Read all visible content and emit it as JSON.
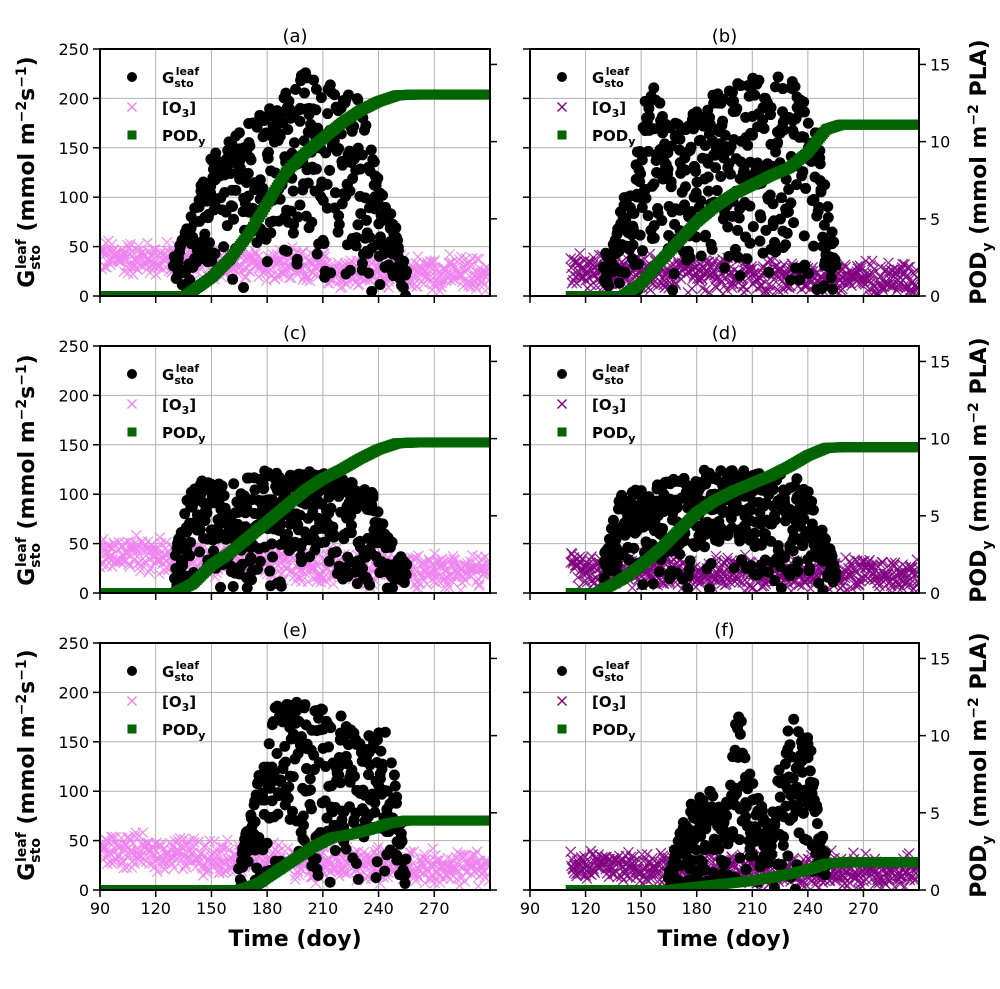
{
  "figure": {
    "xlabel": "Time (doy)",
    "ylabel_left_main": "G",
    "ylabel_left_sub": "sto",
    "ylabel_left_sup": "leaf",
    "ylabel_left_units": " (mmol m",
    "ylabel_left_exp1": "−2",
    "ylabel_left_mid": "s",
    "ylabel_left_exp2": "−1",
    "ylabel_left_end": ")",
    "ylabel_right_main": "POD",
    "ylabel_right_sub": "y",
    "ylabel_right_units": " (mmol m",
    "ylabel_right_exp": "−2",
    "ylabel_right_end": " PLA)"
  },
  "legend": {
    "gsto_main": "G",
    "gsto_sub": "sto",
    "gsto_sup": "leaf",
    "o3_label": "[O",
    "o3_sub": "3",
    "o3_end": "]",
    "pod_main": "POD",
    "pod_sub": "y"
  },
  "colors": {
    "gsto": "#000000",
    "o3_light": "#ee82ee",
    "o3_dark": "#800080",
    "pod": "#006400",
    "grid": "#b0b0b0"
  },
  "chart_data": [
    {
      "type": "scatter",
      "panel": "(a)",
      "xlim": [
        90,
        300
      ],
      "ylim": [
        0,
        250
      ],
      "y2lim": [
        0,
        16
      ],
      "grid": true,
      "xticks": [
        90,
        120,
        150,
        180,
        210,
        240,
        270
      ],
      "yticks": [
        0,
        50,
        100,
        150,
        200,
        250
      ],
      "y2ticks": [
        0,
        5,
        10,
        15
      ],
      "legend_position": "upper-left",
      "series": [
        {
          "name": "Gsto_leaf",
          "axis": "left",
          "marker": "circle",
          "color": "#000000",
          "season": [
            130,
            255
          ],
          "max": 230,
          "envelope_doy": [
            130,
            150,
            170,
            190,
            200,
            210,
            230,
            245,
            255
          ],
          "envelope_max": [
            40,
            140,
            175,
            210,
            230,
            220,
            200,
            90,
            40
          ]
        },
        {
          "name": "[O3]",
          "axis": "left",
          "marker": "x",
          "color": "#ee82ee",
          "season": [
            90,
            300
          ],
          "mean_doy": [
            90,
            150,
            210,
            300
          ],
          "mean": [
            40,
            35,
            27,
            22
          ]
        },
        {
          "name": "PODy",
          "axis": "right",
          "marker": "square",
          "color": "#006400",
          "x": [
            90,
            136,
            150,
            160,
            170,
            180,
            190,
            200,
            210,
            220,
            230,
            240,
            250,
            260,
            300
          ],
          "y": [
            0,
            0,
            1.2,
            2.4,
            4.0,
            6.0,
            8.0,
            9.2,
            10.2,
            11.2,
            12.0,
            12.6,
            13.0,
            13.05,
            13.05
          ]
        }
      ]
    },
    {
      "type": "scatter",
      "panel": "(b)",
      "xlim": [
        90,
        300
      ],
      "ylim": [
        0,
        250
      ],
      "y2lim": [
        0,
        16
      ],
      "grid": true,
      "xticks": [
        90,
        120,
        150,
        180,
        210,
        240,
        270
      ],
      "yticks": [
        0,
        50,
        100,
        150,
        200,
        250
      ],
      "y2ticks": [
        0,
        5,
        10,
        15
      ],
      "legend_position": "upper-left",
      "series": [
        {
          "name": "Gsto_leaf",
          "axis": "left",
          "marker": "circle",
          "color": "#000000",
          "season": [
            130,
            255
          ],
          "max": 235,
          "envelope_doy": [
            130,
            145,
            155,
            165,
            180,
            200,
            215,
            230,
            245,
            255
          ],
          "envelope_max": [
            40,
            120,
            230,
            170,
            190,
            220,
            225,
            225,
            170,
            40
          ]
        },
        {
          "name": "[O3]",
          "axis": "left",
          "marker": "x",
          "color": "#800080",
          "season": [
            112,
            300
          ],
          "mean_doy": [
            112,
            200,
            300
          ],
          "mean": [
            26,
            20,
            18
          ]
        },
        {
          "name": "PODy",
          "axis": "right",
          "marker": "square",
          "color": "#006400",
          "x": [
            112,
            140,
            150,
            160,
            170,
            180,
            190,
            200,
            210,
            220,
            230,
            240,
            250,
            258,
            300
          ],
          "y": [
            0,
            0,
            0.8,
            2.2,
            3.5,
            4.8,
            5.8,
            6.6,
            7.2,
            7.8,
            8.3,
            9.3,
            10.8,
            11.1,
            11.1
          ]
        }
      ]
    },
    {
      "type": "scatter",
      "panel": "(c)",
      "xlim": [
        90,
        300
      ],
      "ylim": [
        0,
        250
      ],
      "y2lim": [
        0,
        16
      ],
      "grid": true,
      "xticks": [
        90,
        120,
        150,
        180,
        210,
        240,
        270
      ],
      "yticks": [
        0,
        50,
        100,
        150,
        200,
        250
      ],
      "y2ticks": [
        0,
        5,
        10,
        15
      ],
      "legend_position": "upper-left",
      "series": [
        {
          "name": "Gsto_leaf",
          "axis": "left",
          "marker": "circle",
          "color": "#000000",
          "season": [
            130,
            255
          ],
          "max": 125,
          "envelope_doy": [
            130,
            140,
            160,
            180,
            200,
            220,
            235,
            245,
            255
          ],
          "envelope_max": [
            40,
            115,
            110,
            125,
            125,
            120,
            110,
            60,
            30
          ]
        },
        {
          "name": "[O3]",
          "axis": "left",
          "marker": "x",
          "color": "#ee82ee",
          "season": [
            90,
            300
          ],
          "mean_doy": [
            90,
            150,
            210,
            300
          ],
          "mean": [
            40,
            35,
            27,
            22
          ]
        },
        {
          "name": "PODy",
          "axis": "right",
          "marker": "square",
          "color": "#006400",
          "x": [
            90,
            130,
            140,
            150,
            160,
            170,
            180,
            190,
            200,
            210,
            220,
            230,
            240,
            250,
            260,
            300
          ],
          "y": [
            0,
            0,
            0.6,
            1.8,
            2.6,
            3.6,
            4.6,
            5.6,
            6.6,
            7.4,
            8.0,
            8.7,
            9.3,
            9.7,
            9.75,
            9.75
          ]
        }
      ]
    },
    {
      "type": "scatter",
      "panel": "(d)",
      "xlim": [
        90,
        300
      ],
      "ylim": [
        0,
        250
      ],
      "y2lim": [
        0,
        16
      ],
      "grid": true,
      "xticks": [
        90,
        120,
        150,
        180,
        210,
        240,
        270
      ],
      "yticks": [
        0,
        50,
        100,
        150,
        200,
        250
      ],
      "y2ticks": [
        0,
        5,
        10,
        15
      ],
      "legend_position": "upper-left",
      "series": [
        {
          "name": "Gsto_leaf",
          "axis": "left",
          "marker": "circle",
          "color": "#000000",
          "season": [
            130,
            255
          ],
          "max": 125,
          "envelope_doy": [
            130,
            140,
            160,
            180,
            200,
            220,
            235,
            245,
            255
          ],
          "envelope_max": [
            40,
            105,
            110,
            125,
            125,
            120,
            125,
            80,
            30
          ]
        },
        {
          "name": "[O3]",
          "axis": "left",
          "marker": "x",
          "color": "#800080",
          "season": [
            112,
            300
          ],
          "mean_doy": [
            112,
            200,
            300
          ],
          "mean": [
            26,
            20,
            18
          ]
        },
        {
          "name": "PODy",
          "axis": "right",
          "marker": "square",
          "color": "#006400",
          "x": [
            112,
            126,
            140,
            150,
            160,
            170,
            180,
            190,
            200,
            210,
            220,
            230,
            240,
            250,
            260,
            300
          ],
          "y": [
            0,
            0,
            0.9,
            1.8,
            2.8,
            4.0,
            5.2,
            6.0,
            6.6,
            7.1,
            7.6,
            8.2,
            8.9,
            9.4,
            9.45,
            9.45
          ]
        }
      ]
    },
    {
      "type": "scatter",
      "panel": "(e)",
      "xlim": [
        90,
        300
      ],
      "ylim": [
        0,
        250
      ],
      "y2lim": [
        0,
        16
      ],
      "grid": true,
      "xticks": [
        90,
        120,
        150,
        180,
        210,
        240,
        270
      ],
      "yticks": [
        0,
        50,
        100,
        150,
        200,
        250
      ],
      "y2ticks": [
        0,
        5,
        10,
        15
      ],
      "legend_position": "upper-left",
      "series": [
        {
          "name": "Gsto_leaf",
          "axis": "left",
          "marker": "circle",
          "color": "#000000",
          "season": [
            165,
            255
          ],
          "max": 190,
          "envelope_doy": [
            165,
            175,
            185,
            200,
            215,
            230,
            245,
            255
          ],
          "envelope_max": [
            30,
            110,
            190,
            190,
            190,
            150,
            170,
            30
          ]
        },
        {
          "name": "[O3]",
          "axis": "left",
          "marker": "x",
          "color": "#ee82ee",
          "season": [
            90,
            300
          ],
          "mean_doy": [
            90,
            150,
            210,
            300
          ],
          "mean": [
            40,
            35,
            27,
            22
          ]
        },
        {
          "name": "PODy",
          "axis": "right",
          "marker": "square",
          "color": "#006400",
          "x": [
            90,
            165,
            175,
            185,
            195,
            205,
            215,
            225,
            235,
            245,
            255,
            300
          ],
          "y": [
            0,
            0,
            0.4,
            1.2,
            2.0,
            2.8,
            3.4,
            3.6,
            3.9,
            4.3,
            4.5,
            4.5
          ]
        }
      ]
    },
    {
      "type": "scatter",
      "panel": "(f)",
      "xlim": [
        90,
        300
      ],
      "ylim": [
        0,
        250
      ],
      "y2lim": [
        0,
        16
      ],
      "grid": true,
      "xticks": [
        90,
        120,
        150,
        180,
        210,
        240,
        270
      ],
      "yticks": [
        0,
        50,
        100,
        150,
        200,
        250
      ],
      "y2ticks": [
        0,
        5,
        10,
        15
      ],
      "legend_position": "upper-left",
      "series": [
        {
          "name": "Gsto_leaf",
          "axis": "left",
          "marker": "circle",
          "color": "#000000",
          "season": [
            165,
            250
          ],
          "max": 190,
          "envelope_doy": [
            165,
            175,
            185,
            195,
            203,
            210,
            220,
            230,
            240,
            250
          ],
          "envelope_max": [
            20,
            85,
            110,
            80,
            190,
            110,
            70,
            180,
            160,
            30
          ]
        },
        {
          "name": "[O3]",
          "axis": "left",
          "marker": "x",
          "color": "#800080",
          "season": [
            112,
            300
          ],
          "mean_doy": [
            112,
            200,
            300
          ],
          "mean": [
            26,
            20,
            18
          ]
        },
        {
          "name": "PODy",
          "axis": "right",
          "marker": "square",
          "color": "#006400",
          "x": [
            112,
            165,
            180,
            195,
            210,
            225,
            240,
            250,
            260,
            300
          ],
          "y": [
            0,
            0,
            0.2,
            0.4,
            0.6,
            0.9,
            1.3,
            1.7,
            1.8,
            1.8
          ]
        }
      ]
    }
  ]
}
